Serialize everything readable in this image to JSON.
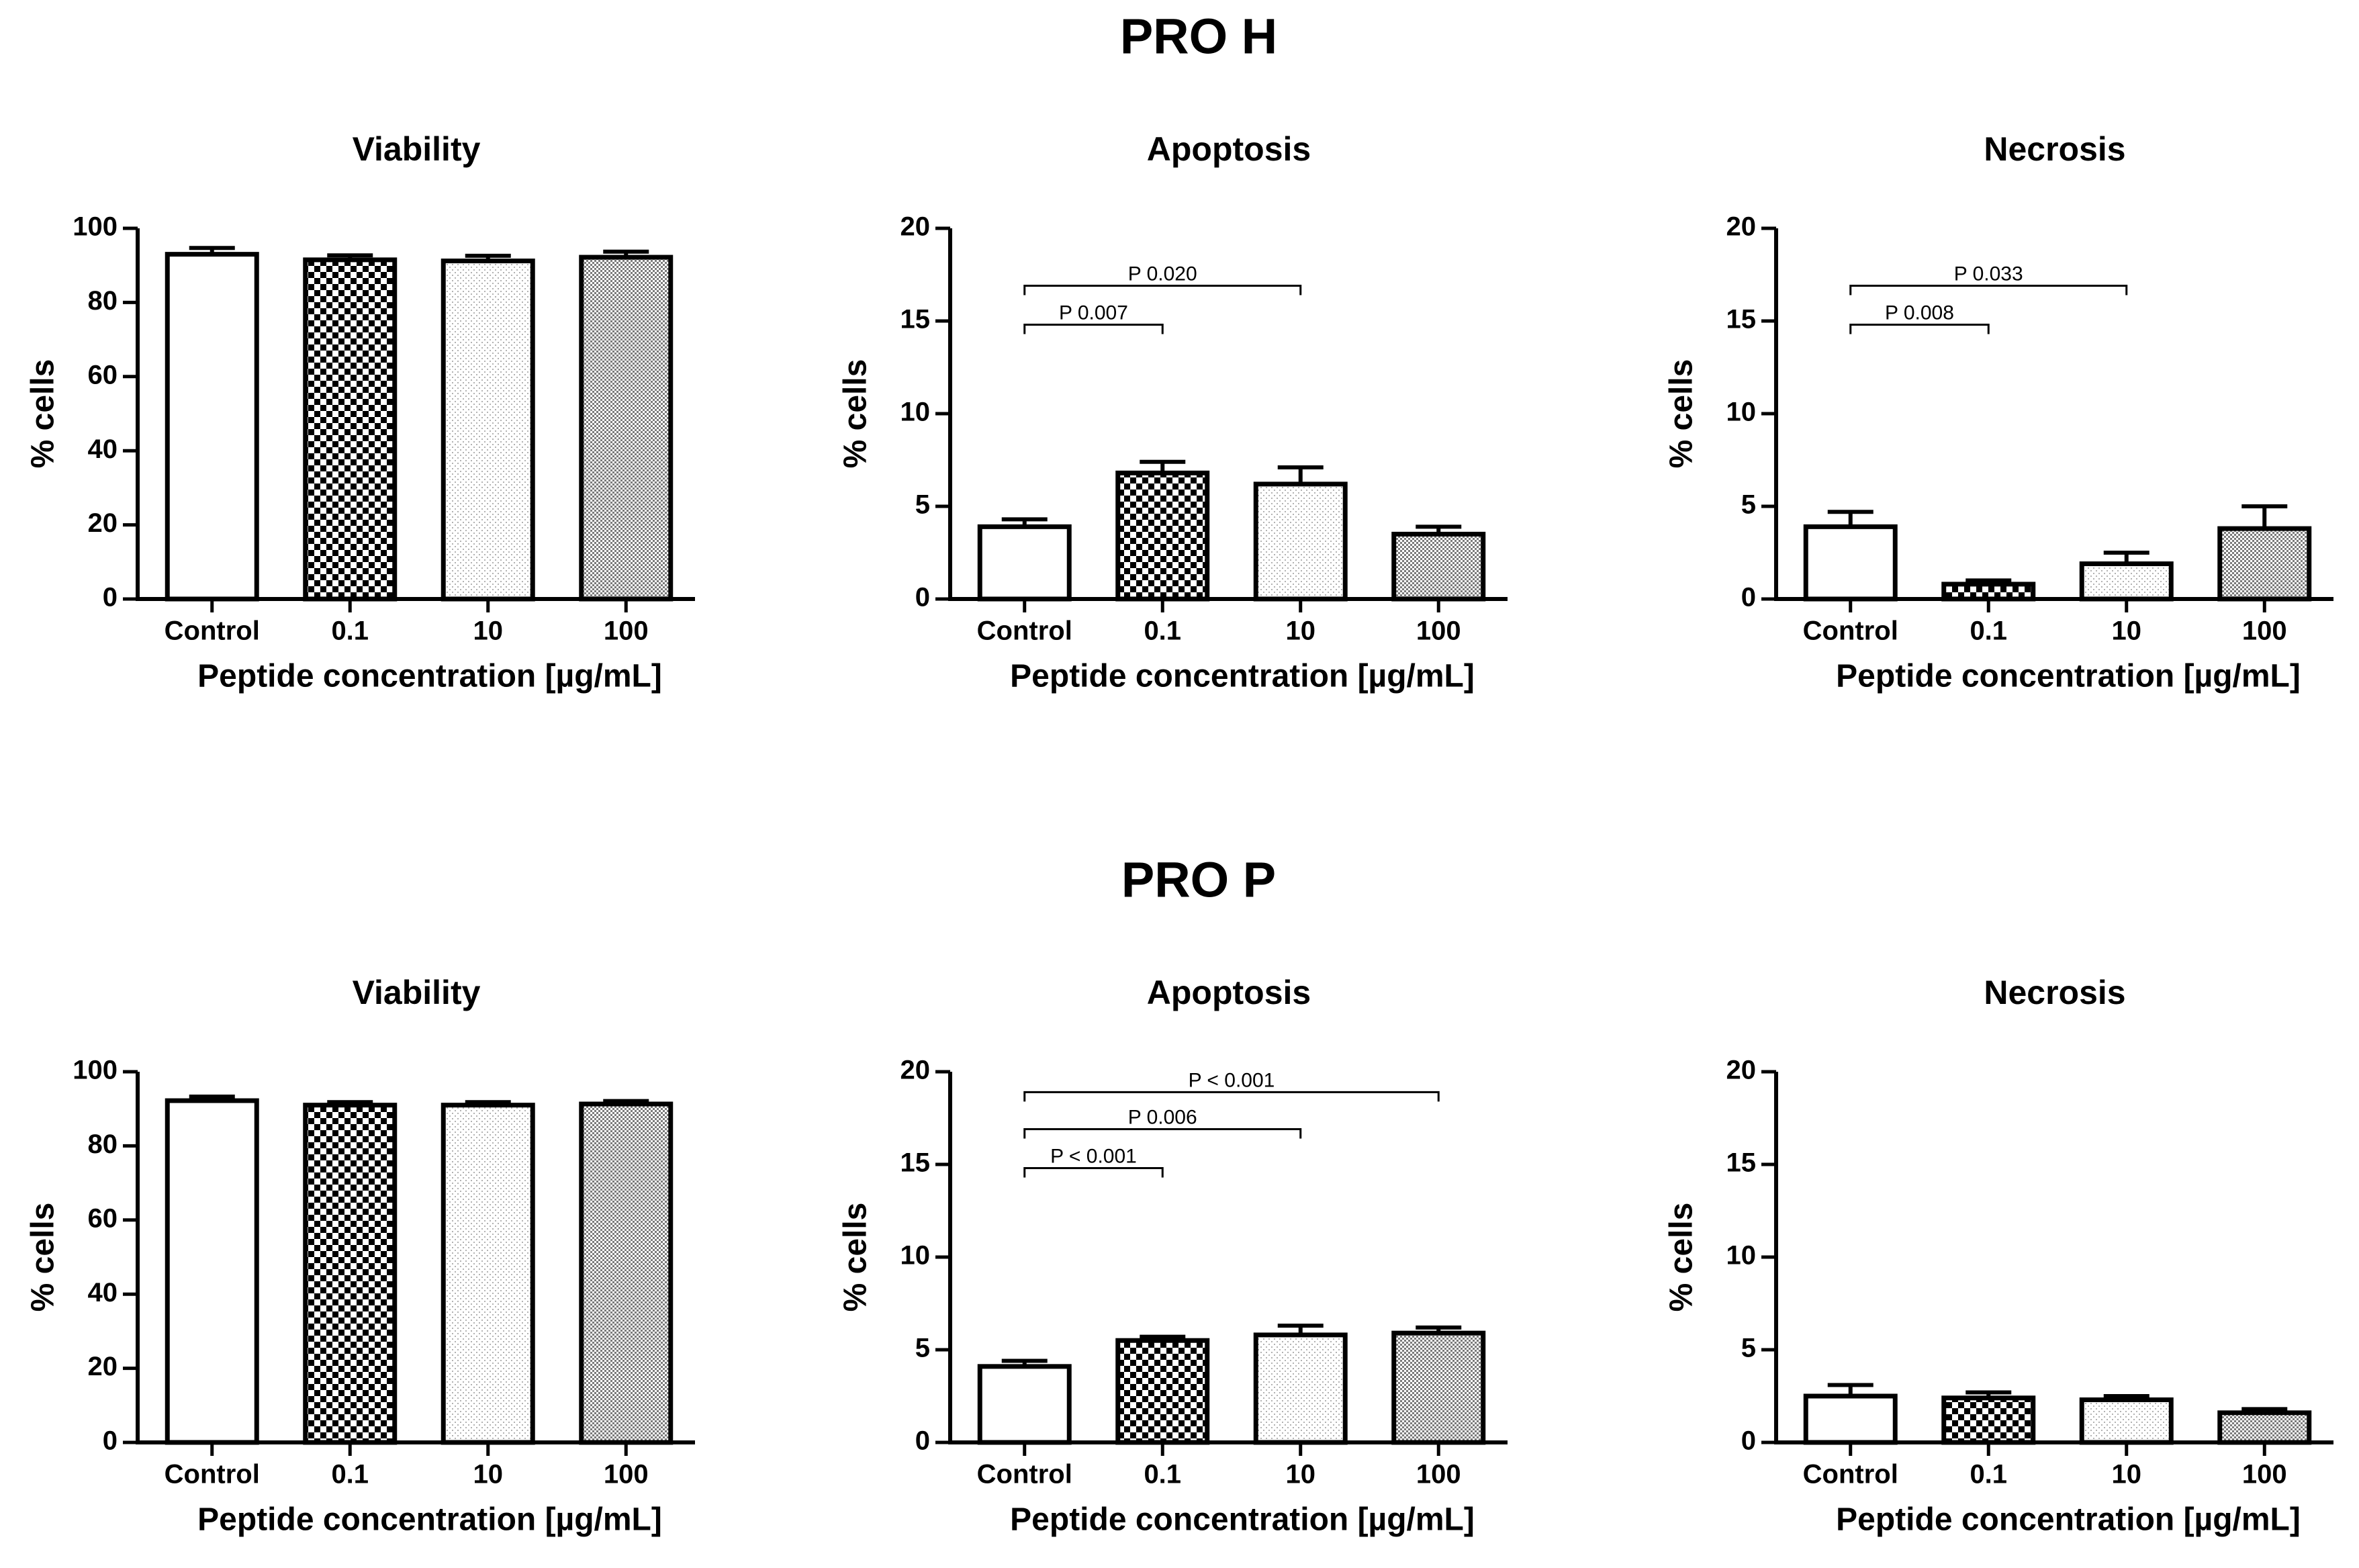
{
  "figure": {
    "groups": [
      {
        "title": "PRO H",
        "panels": [
          {
            "type": "bar",
            "title": "Viability",
            "ylabel": "% cells",
            "xlabel": "Peptide concentration [µg/mL]",
            "categories": [
              "Control",
              "0.1",
              "10",
              "100"
            ],
            "values": [
              93,
              91.5,
              91.2,
              92.2
            ],
            "errors": [
              1.7,
              1.2,
              1.4,
              1.5
            ],
            "ylim": [
              0,
              100
            ],
            "yticks": [
              0,
              20,
              40,
              60,
              80,
              100
            ],
            "comparisons": []
          },
          {
            "type": "bar",
            "title": "Apoptosis",
            "ylabel": "% cells",
            "xlabel": "Peptide concentration [µg/mL]",
            "categories": [
              "Control",
              "0.1",
              "10",
              "100"
            ],
            "values": [
              3.9,
              6.8,
              6.2,
              3.5
            ],
            "errors": [
              0.4,
              0.6,
              0.9,
              0.4
            ],
            "ylim": [
              0,
              20
            ],
            "yticks": [
              0,
              5,
              10,
              15,
              20
            ],
            "comparisons": [
              {
                "from": 0,
                "to": 1,
                "level": 14.8,
                "label": "P 0.007"
              },
              {
                "from": 0,
                "to": 2,
                "level": 16.9,
                "label": "P 0.020"
              }
            ]
          },
          {
            "type": "bar",
            "title": "Necrosis",
            "ylabel": "% cells",
            "xlabel": "Peptide concentration [µg/mL]",
            "categories": [
              "Control",
              "0.1",
              "10",
              "100"
            ],
            "values": [
              3.9,
              0.8,
              1.9,
              3.8
            ],
            "errors": [
              0.8,
              0.2,
              0.6,
              1.2
            ],
            "ylim": [
              0,
              20
            ],
            "yticks": [
              0,
              5,
              10,
              15,
              20
            ],
            "comparisons": [
              {
                "from": 0,
                "to": 1,
                "level": 14.8,
                "label": "P 0.008"
              },
              {
                "from": 0,
                "to": 2,
                "level": 16.9,
                "label": "P 0.033"
              }
            ]
          }
        ]
      },
      {
        "title": "PRO P",
        "panels": [
          {
            "type": "bar",
            "title": "Viability",
            "ylabel": "% cells",
            "xlabel": "Peptide concentration [µg/mL]",
            "categories": [
              "Control",
              "0.1",
              "10",
              "100"
            ],
            "values": [
              92.2,
              91,
              91,
              91.3
            ],
            "errors": [
              1.1,
              0.8,
              0.8,
              0.8
            ],
            "ylim": [
              0,
              100
            ],
            "yticks": [
              0,
              20,
              40,
              60,
              80,
              100
            ],
            "comparisons": []
          },
          {
            "type": "bar",
            "title": "Apoptosis",
            "ylabel": "% cells",
            "xlabel": "Peptide concentration [µg/mL]",
            "categories": [
              "Control",
              "0.1",
              "10",
              "100"
            ],
            "values": [
              4.1,
              5.5,
              5.8,
              5.9
            ],
            "errors": [
              0.3,
              0.2,
              0.5,
              0.3
            ],
            "ylim": [
              0,
              20
            ],
            "yticks": [
              0,
              5,
              10,
              15,
              20
            ],
            "comparisons": [
              {
                "from": 0,
                "to": 1,
                "level": 14.8,
                "label": "P < 0.001"
              },
              {
                "from": 0,
                "to": 2,
                "level": 16.9,
                "label": "P 0.006"
              },
              {
                "from": 0,
                "to": 3,
                "level": 18.9,
                "label": "P < 0.001"
              }
            ]
          },
          {
            "type": "bar",
            "title": "Necrosis",
            "ylabel": "% cells",
            "xlabel": "Peptide concentration [µg/mL]",
            "categories": [
              "Control",
              "0.1",
              "10",
              "100"
            ],
            "values": [
              2.5,
              2.4,
              2.3,
              1.6
            ],
            "errors": [
              0.6,
              0.3,
              0.2,
              0.2
            ],
            "ylim": [
              0,
              20
            ],
            "yticks": [
              0,
              5,
              10,
              15,
              20
            ],
            "comparisons": []
          }
        ]
      }
    ]
  },
  "chart_data": [
    {
      "type": "bar",
      "group": "PRO H",
      "title": "Viability",
      "xlabel": "Peptide concentration [µg/mL]",
      "ylabel": "% cells",
      "categories": [
        "Control",
        "0.1",
        "10",
        "100"
      ],
      "values": [
        93,
        91.5,
        91.2,
        92.2
      ],
      "errors": [
        1.7,
        1.2,
        1.4,
        1.5
      ],
      "ylim": [
        0,
        100
      ]
    },
    {
      "type": "bar",
      "group": "PRO H",
      "title": "Apoptosis",
      "xlabel": "Peptide concentration [µg/mL]",
      "ylabel": "% cells",
      "categories": [
        "Control",
        "0.1",
        "10",
        "100"
      ],
      "values": [
        3.9,
        6.8,
        6.2,
        3.5
      ],
      "errors": [
        0.4,
        0.6,
        0.9,
        0.4
      ],
      "ylim": [
        0,
        20
      ],
      "annotations": [
        "P 0.007",
        "P 0.020"
      ]
    },
    {
      "type": "bar",
      "group": "PRO H",
      "title": "Necrosis",
      "xlabel": "Peptide concentration [µg/mL]",
      "ylabel": "% cells",
      "categories": [
        "Control",
        "0.1",
        "10",
        "100"
      ],
      "values": [
        3.9,
        0.8,
        1.9,
        3.8
      ],
      "errors": [
        0.8,
        0.2,
        0.6,
        1.2
      ],
      "ylim": [
        0,
        20
      ],
      "annotations": [
        "P 0.008",
        "P 0.033"
      ]
    },
    {
      "type": "bar",
      "group": "PRO P",
      "title": "Viability",
      "xlabel": "Peptide concentration [µg/mL]",
      "ylabel": "% cells",
      "categories": [
        "Control",
        "0.1",
        "10",
        "100"
      ],
      "values": [
        92.2,
        91,
        91,
        91.3
      ],
      "errors": [
        1.1,
        0.8,
        0.8,
        0.8
      ],
      "ylim": [
        0,
        100
      ]
    },
    {
      "type": "bar",
      "group": "PRO P",
      "title": "Apoptosis",
      "xlabel": "Peptide concentration [µg/mL]",
      "ylabel": "% cells",
      "categories": [
        "Control",
        "0.1",
        "10",
        "100"
      ],
      "values": [
        4.1,
        5.5,
        5.8,
        5.9
      ],
      "errors": [
        0.3,
        0.2,
        0.5,
        0.3
      ],
      "ylim": [
        0,
        20
      ],
      "annotations": [
        "P < 0.001",
        "P 0.006",
        "P < 0.001"
      ]
    },
    {
      "type": "bar",
      "group": "PRO P",
      "title": "Necrosis",
      "xlabel": "Peptide concentration [µg/mL]",
      "ylabel": "% cells",
      "categories": [
        "Control",
        "0.1",
        "10",
        "100"
      ],
      "values": [
        2.5,
        2.4,
        2.3,
        1.6
      ],
      "errors": [
        0.6,
        0.3,
        0.2,
        0.2
      ],
      "ylim": [
        0,
        20
      ]
    }
  ]
}
